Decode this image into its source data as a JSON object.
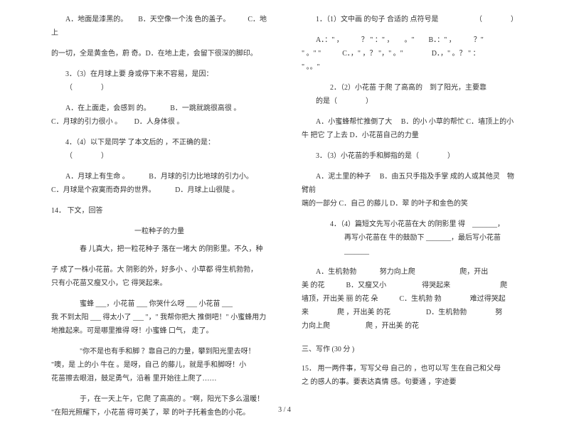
{
  "page": {
    "num": "3 / 4"
  },
  "left": {
    "l1": "A．地面是漆黑的。　　B．天空像一个浅 色的盖子。　　　C．地上",
    "l2": "的一切，全是黄金色，蔚 奇。D．在地上走，会留下很深的脚印。",
    "q3": "3．（3）在月球上要 身或停下来不容易，是因：",
    "paren1": "（　　　　）",
    "o3a": "A．在上面走，会感到 的。",
    "o3b": "B．一跳就跳很高很 。",
    "o3c": "C．月球的引力很小 。",
    "o3d": "D．人身体很 。",
    "q4": "4．（4）以下是同学 了本文后的 ，不正确的是：",
    "paren2": "（　　　　）",
    "o4a": "A．月球上有生命 。",
    "o4b": "B．月球的引力比地球的引力小。",
    "o4c": "C．月球是个寂寞而奇异的世界。",
    "o4d": "D．月球上山很陡 。",
    "q14": "14． 下文，回答",
    "title": "一粒种子的力量",
    "p1a": "春 儿真大，把一粒花种子 落在一堵大 的阴影里。不久，种",
    "p1b": "子 成了一株小花苗。大 阴影的外，好多小 、小草都 得生机勃勃，",
    "p1c": "只有小花苗又瘦又小，它 得哭起来。",
    "p2a": "蜜蜂 ___，小花苗 ___ 你哭什么呀 ___ 小花苗 ___",
    "p2b": "我 不到太阳 ___ 得太小了 ___ \"，\" 我帮你把大 推倒吧！\" 小蜜蜂用力",
    "p2c": "地推起来。可是哪里推得 呀！小蜜蜂 口气， 走了。",
    "p3a": "\"你不是也有手和脚 ？靠自己的力量，攀到阳光里去呀！",
    "p3b": "\"噢，是 上的小 牛在 。是呀，自己 的藤儿，就是手和脚呀！小",
    "p3c": "花苗擦去眼泪，鼓足勇气，沿着 里开始往上爬了……",
    "p4a": "于，在一天上午，它爬 了高高的 。\"啊，阳光下多么温暖！",
    "p4b": "\"在阳光照耀下，小花苗 得可美了，翠 的叶子托着金色的小花。"
  },
  "right": {
    "q1": "1．（1）文中画 的句子 合适的 点符号是",
    "paren1": "（　　　　）",
    "opt1": "A．：\" ，　　　？ \" ：\" ，　　。\"　　B．：\" ，　　　？\"",
    "opt1b": "\" 。\" \"　　　C．，\" ，？ \"，\" 。\"　　　　D．，\" 。？ \" ：",
    "opt1c": "\" 。。\"",
    "q2": "2．（2）小花苗 于爬 了高高的　到了阳光，主要靠",
    "q2b": "的是（　　　　）",
    "o2a": "A．小蜜蜂帮忙推倒了大",
    "o2b": "B．的小 小草的帮忙",
    "o2c": "C．墙顶上的小 牛",
    "o2d": "把它 了上去 D．小花苗自己的力量",
    "q3": "3．（3）小花苗的手和脚指的是（　　　　）",
    "o3a": "A．泥土里的种子",
    "o3b": "B．由五只手指及手掌 成的人或其他灵　物臂前",
    "o3c": "端的一部分 C．自己 的藤儿 D．翠 的叶子和金色的笑",
    "q4a": "4．（4）篇短文先写小花苗在大 的阴影里 得　_______，",
    "q4b": "再写小花苗在 牛的鼓励下 _______，最后写小花苗",
    "q4c": "_______",
    "o4_1": "A．生机勃勃 　　　努力向上爬 　　　　　　爬，开出",
    "o4_2": "美 的花　　　B．又瘦又小　　　　　得哭起来　　　　　　　爬",
    "o4_3": "墙顶，开出美 丽 的花 朵　　　C．生机勃 勃　　　　难过得哭起",
    "o4_4": "来　　　　爬 ，开出美 的花　　　　　D．生机勃勃　　　　努",
    "o4_5": "力向上爬　　　　　爬 ，开出美 的花",
    "section": "三、写作 (30 分 )",
    "q15a": "15． 用一两件事，写写父母 自己的 ，也可以写 生在自己和父母",
    "q15b": "之 的感人的事。要表达真情 感。句要通 ，字迹要"
  }
}
